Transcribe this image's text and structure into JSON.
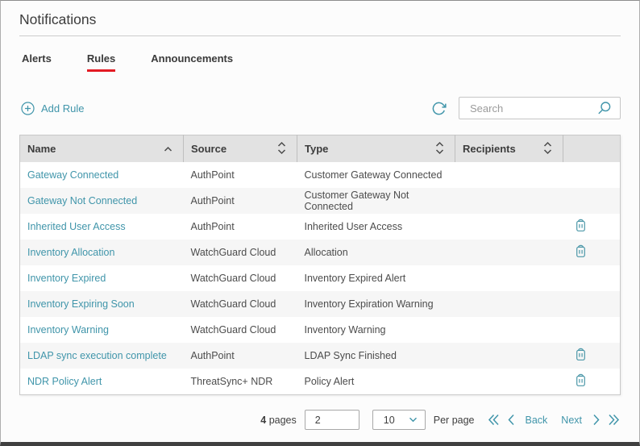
{
  "page": {
    "title": "Notifications"
  },
  "tabs": [
    {
      "label": "Alerts",
      "active": false
    },
    {
      "label": "Rules",
      "active": true
    },
    {
      "label": "Announcements",
      "active": false
    }
  ],
  "toolbar": {
    "add_rule_label": "Add Rule",
    "add_icon": "plus-circle-icon",
    "refresh_icon": "refresh-icon",
    "search_placeholder": "Search",
    "search_value": "",
    "search_icon": "magnifier-icon"
  },
  "table": {
    "columns": [
      {
        "label": "Name",
        "sort": "asc"
      },
      {
        "label": "Source",
        "sort": "both"
      },
      {
        "label": "Type",
        "sort": "both"
      },
      {
        "label": "Recipients",
        "sort": "both"
      },
      {
        "label": "",
        "sort": "none"
      }
    ],
    "rows": [
      {
        "name": "Gateway Connected",
        "source": "AuthPoint",
        "type": "Customer Gateway Connected",
        "recipients": "",
        "deletable": false
      },
      {
        "name": "Gateway Not Connected",
        "source": "AuthPoint",
        "type": "Customer Gateway Not Connected",
        "recipients": "",
        "deletable": false
      },
      {
        "name": "Inherited User Access",
        "source": "AuthPoint",
        "type": "Inherited User Access",
        "recipients": "",
        "deletable": true
      },
      {
        "name": "Inventory Allocation",
        "source": "WatchGuard Cloud",
        "type": "Allocation",
        "recipients": "",
        "deletable": true
      },
      {
        "name": "Inventory Expired",
        "source": "WatchGuard Cloud",
        "type": "Inventory Expired Alert",
        "recipients": "",
        "deletable": false
      },
      {
        "name": "Inventory Expiring Soon",
        "source": "WatchGuard Cloud",
        "type": "Inventory Expiration Warning",
        "recipients": "",
        "deletable": false
      },
      {
        "name": "Inventory Warning",
        "source": "WatchGuard Cloud",
        "type": "Inventory Warning",
        "recipients": "",
        "deletable": false
      },
      {
        "name": "LDAP sync execution complete",
        "source": "AuthPoint",
        "type": "LDAP Sync Finished",
        "recipients": "",
        "deletable": true
      },
      {
        "name": "NDR Policy Alert",
        "source": "ThreatSync+ NDR",
        "type": "Policy Alert",
        "recipients": "",
        "deletable": true
      }
    ],
    "delete_icon": "trash-icon",
    "sort_asc_icon": "chevron-up-icon",
    "sort_both_icon": "chevrons-up-down-icon"
  },
  "pagination": {
    "total_pages": "4",
    "pages_label": "pages",
    "current_page": "2",
    "per_page_value": "10",
    "per_page_label": "Per page",
    "back_label": "Back",
    "next_label": "Next",
    "first_icon": "double-chevron-left-icon",
    "prev_icon": "chevron-left-icon",
    "next_icon": "chevron-right-icon",
    "last_icon": "double-chevron-right-icon"
  },
  "colors": {
    "accent_teal": "#4095aa",
    "active_tab_red": "#e31b23",
    "header_gray": "#e2e2e2",
    "stripe_gray": "#f6f6f6"
  }
}
